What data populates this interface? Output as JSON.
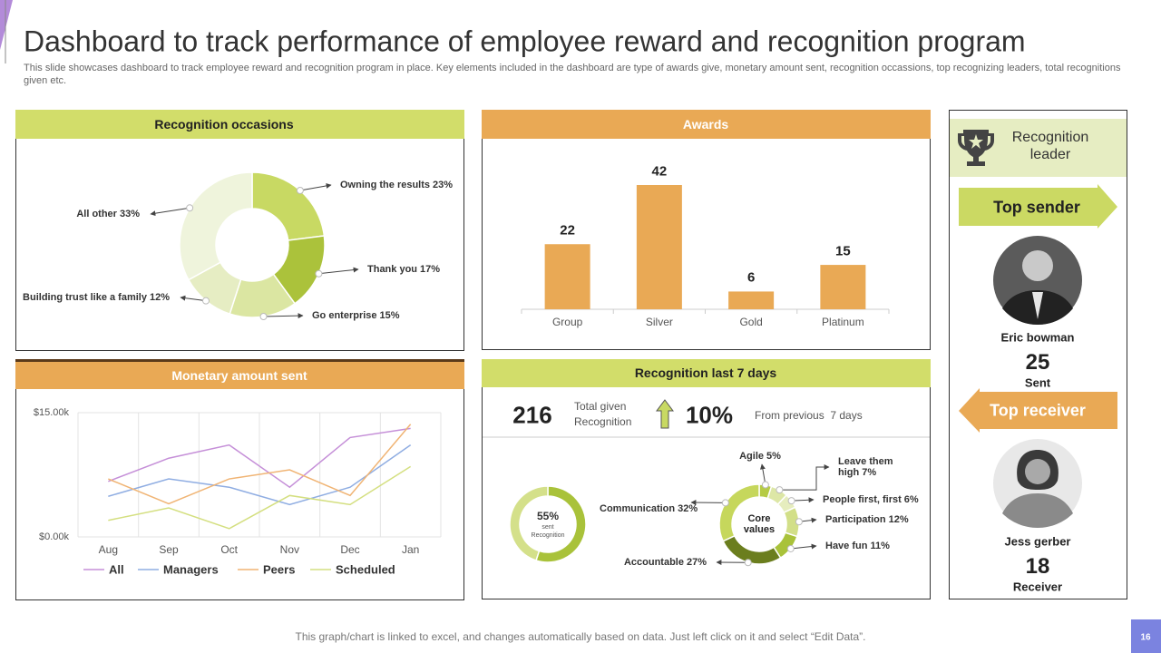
{
  "title": "Dashboard to track performance of employee reward and recognition program",
  "subtitle": "This slide showcases dashboard to track employee reward and recognition program in place. Key elements included in the dashboard are type of awards give, monetary amount sent, recognition occassions, top recognizing leaders, total recognitions given etc.",
  "footer": "This graph/chart is linked to excel,  and changes automatically based on data. Just left click on it and select “Edit Data”.",
  "page_number": "16",
  "recognition_last_7_days": {
    "header": "Recognition last 7 days",
    "total": 216,
    "total_label": "Total given Recognition",
    "change": "10%",
    "change_label": "From previous  7 days"
  },
  "leader": {
    "title": "Recognition leader",
    "top_sender": {
      "label": "Top sender",
      "name": "Eric bowman",
      "count": 25,
      "unit": "Sent"
    },
    "top_receiver": {
      "label": "Top receiver",
      "name": "Jess gerber",
      "count": 18,
      "unit": "Receiver"
    }
  },
  "chart_data": [
    {
      "type": "donut",
      "title": "Recognition occasions",
      "categories": [
        "Owning the results",
        "Thank you",
        "Go enterprise",
        "Building trust like a family",
        "All other"
      ],
      "values": [
        23,
        17,
        15,
        12,
        33
      ],
      "value_labels": [
        "23%",
        "17%",
        "15%",
        "12%",
        "33%"
      ],
      "colors": [
        "#c8d963",
        "#abc23b",
        "#dbe6a2",
        "#e6edc3",
        "#eff4dc"
      ]
    },
    {
      "type": "bar",
      "title": "Awards",
      "categories": [
        "Group",
        "Silver",
        "Gold",
        "Platinum"
      ],
      "values": [
        22,
        42,
        6,
        15
      ],
      "color": "#e9a955"
    },
    {
      "type": "line",
      "title": "Monetary amount sent",
      "categories": [
        "Aug",
        "Sep",
        "Oct",
        "Nov",
        "Dec",
        "Jan"
      ],
      "series": [
        {
          "name": "All",
          "color": "#c58fd8",
          "values": [
            6.7,
            9.5,
            11.1,
            6.0,
            12.0,
            13.1
          ]
        },
        {
          "name": "Managers",
          "color": "#8fade2",
          "values": [
            4.9,
            7.0,
            6.0,
            3.9,
            6.0,
            11.1
          ]
        },
        {
          "name": "Peers",
          "color": "#f0b474",
          "values": [
            7.0,
            4.0,
            7.0,
            8.1,
            5.0,
            13.6
          ]
        },
        {
          "name": "Scheduled",
          "color": "#d4df80",
          "values": [
            2.0,
            3.5,
            1.0,
            5.0,
            3.9,
            8.5
          ]
        }
      ],
      "ylim": [
        0,
        15
      ],
      "yticks": [
        {
          "value": 0,
          "label": "$0.00k"
        },
        {
          "value": 15,
          "label": "$15.00k"
        }
      ],
      "grid": true
    },
    {
      "type": "donut",
      "center_label": "Core values",
      "categories": [
        "Agile",
        "Leave them high",
        "People first, first",
        "Participation",
        "Have fun",
        "Accountable",
        "Communication"
      ],
      "values": [
        5,
        7,
        6,
        12,
        11,
        27,
        32
      ],
      "value_labels": [
        "5%",
        "7%",
        "6%",
        "12%",
        "11%",
        "27%",
        "32%"
      ],
      "colors": [
        "#b5cb44",
        "#dde7a6",
        "#e6edbe",
        "#d2df88",
        "#a9c23a",
        "#6b7e1e",
        "#c6d75c"
      ]
    },
    {
      "type": "donut",
      "center_label": "sent Recognition",
      "values": [
        55
      ],
      "value_labels": [
        "55%"
      ],
      "colors": [
        "#a9c23a"
      ]
    }
  ]
}
